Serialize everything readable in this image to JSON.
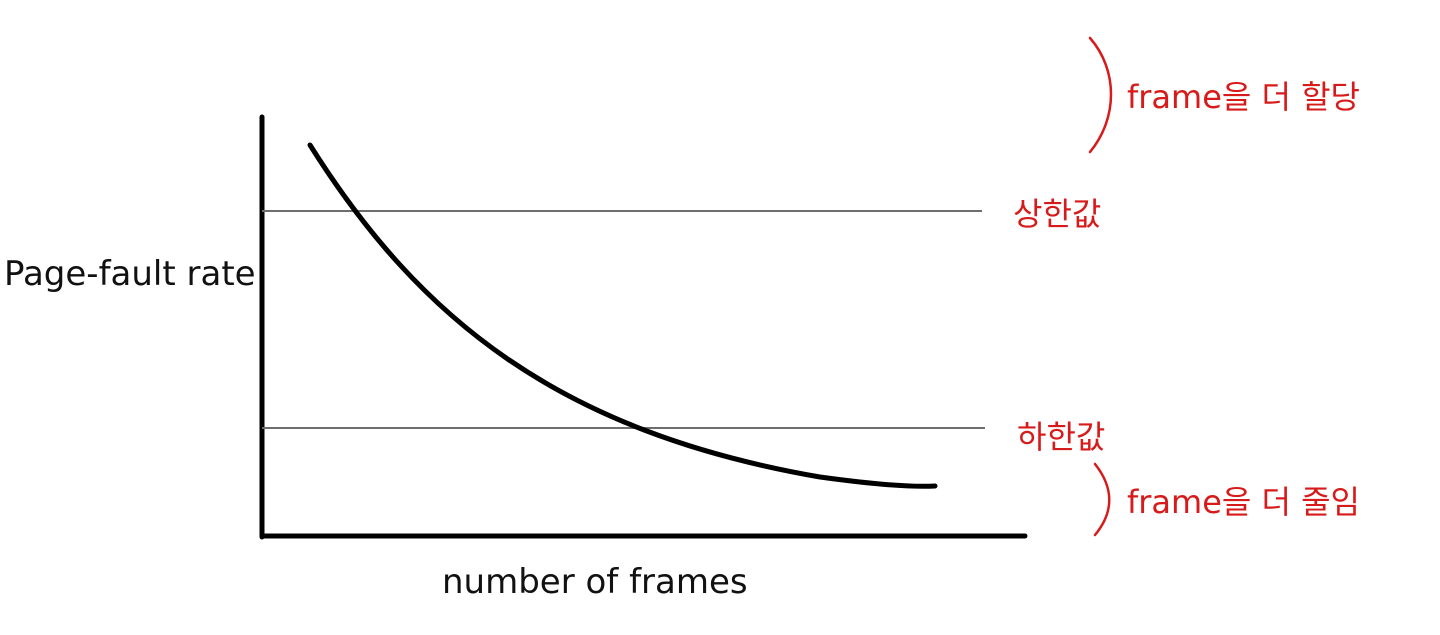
{
  "y_axis_label": "Page-fault rate",
  "x_axis_label": "number of frames",
  "upper_threshold_label": "상한값",
  "lower_threshold_label": "하한값",
  "allocate_more_label": "frame을 더 할당",
  "reduce_label": "frame을 더 줄임",
  "colors": {
    "axis": "#000000",
    "curve": "#000000",
    "threshold_line": "#6e6e6e",
    "annotation": "#d71a1a"
  }
}
